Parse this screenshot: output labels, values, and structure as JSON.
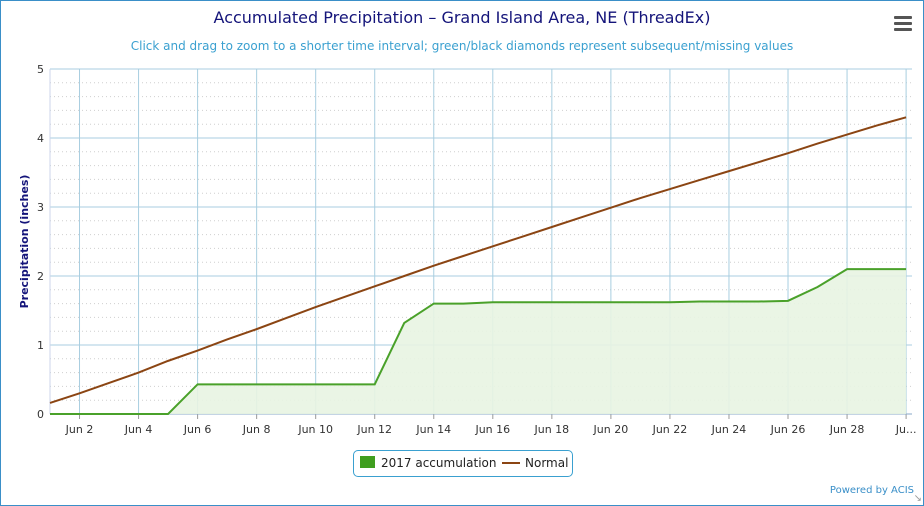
{
  "header": {
    "title": "Accumulated Precipitation – Grand Island Area, NE (ThreadEx)",
    "subtitle": "Click and drag to zoom to a shorter time interval; green/black diamonds represent subsequent/missing values"
  },
  "footer": {
    "credit": "Powered by ACIS"
  },
  "menu": {
    "icon": "hamburger-menu-icon"
  },
  "chart_data": {
    "type": "area",
    "title": "Accumulated Precipitation – Grand Island Area, NE (ThreadEx)",
    "ylabel": "Precipitation (inches)",
    "xlabel": "",
    "x": [
      1,
      2,
      3,
      4,
      5,
      6,
      7,
      8,
      9,
      10,
      11,
      12,
      13,
      14,
      15,
      16,
      17,
      18,
      19,
      20,
      21,
      22,
      23,
      24,
      25,
      26,
      27,
      28,
      29,
      30
    ],
    "ylim": [
      0,
      5
    ],
    "yticks": [
      0,
      1,
      2,
      3,
      4,
      5
    ],
    "xtick_labels": [
      "Jun 2",
      "Jun 4",
      "Jun 6",
      "Jun 8",
      "Jun 10",
      "Jun 12",
      "Jun 14",
      "Jun 16",
      "Jun 18",
      "Jun 20",
      "Jun 22",
      "Jun 24",
      "Jun 26",
      "Jun 28",
      "Ju..."
    ],
    "grid": true,
    "legend_position": "bottom-center",
    "colors": {
      "accumulation": "#4aa12a",
      "accumulation_fill": "#e8f4e2",
      "normal": "#8b4513",
      "grid": "#a8cee0"
    },
    "series": [
      {
        "name": "2017 accumulation",
        "type": "area",
        "values": [
          0,
          0,
          0,
          0,
          0,
          0.43,
          0.43,
          0.43,
          0.43,
          0.43,
          0.43,
          0.43,
          1.32,
          1.6,
          1.6,
          1.62,
          1.62,
          1.62,
          1.62,
          1.62,
          1.62,
          1.62,
          1.63,
          1.63,
          1.63,
          1.64,
          1.84,
          2.1,
          2.1,
          2.1
        ]
      },
      {
        "name": "Normal",
        "type": "line",
        "values": [
          0.16,
          0.3,
          0.45,
          0.6,
          0.77,
          0.92,
          1.08,
          1.23,
          1.39,
          1.55,
          1.7,
          1.85,
          2.0,
          2.15,
          2.29,
          2.43,
          2.57,
          2.71,
          2.85,
          2.99,
          3.13,
          3.26,
          3.39,
          3.52,
          3.65,
          3.78,
          3.92,
          4.05,
          4.18,
          4.3
        ]
      }
    ]
  }
}
